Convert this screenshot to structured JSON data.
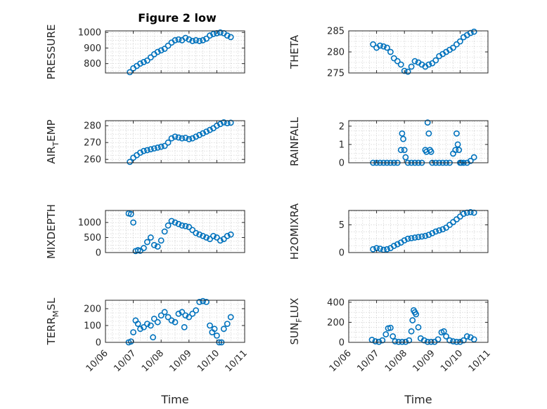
{
  "figure": {
    "title": "Figure 2 low",
    "marker_color": "#0072BD"
  },
  "chart_data": [
    {
      "type": "scatter",
      "ylabel": "PRESSURE",
      "xlabel": "",
      "xlim": [
        "10/06",
        "10/11"
      ],
      "ylim": [
        740,
        1010
      ],
      "yticks": [
        800,
        900,
        1000
      ],
      "show_xticklabels": false,
      "x": [
        "10/06 21:00",
        "10/07 00:00",
        "10/07 03:00",
        "10/07 06:00",
        "10/07 09:00",
        "10/07 12:00",
        "10/07 15:00",
        "10/07 18:00",
        "10/07 21:00",
        "10/08 00:00",
        "10/08 03:00",
        "10/08 06:00",
        "10/08 09:00",
        "10/08 12:00",
        "10/08 15:00",
        "10/08 18:00",
        "10/08 21:00",
        "10/09 00:00",
        "10/09 03:00",
        "10/09 06:00",
        "10/09 09:00",
        "10/09 12:00",
        "10/09 15:00",
        "10/09 18:00",
        "10/09 21:00",
        "10/10 00:00",
        "10/10 03:00",
        "10/10 06:00",
        "10/10 09:00",
        "10/10 12:00"
      ],
      "y": [
        745,
        770,
        785,
        800,
        810,
        820,
        840,
        860,
        875,
        885,
        895,
        915,
        935,
        950,
        955,
        950,
        965,
        955,
        945,
        950,
        945,
        950,
        960,
        980,
        990,
        995,
        1000,
        995,
        980,
        970
      ]
    },
    {
      "type": "scatter",
      "ylabel": "THETA",
      "xlabel": "",
      "xlim": [
        "10/06",
        "10/11"
      ],
      "ylim": [
        275,
        285
      ],
      "yticks": [
        275,
        280,
        285
      ],
      "show_xticklabels": false,
      "x": [
        "10/06 21:00",
        "10/07 00:00",
        "10/07 03:00",
        "10/07 06:00",
        "10/07 09:00",
        "10/07 12:00",
        "10/07 15:00",
        "10/07 18:00",
        "10/07 21:00",
        "10/08 00:00",
        "10/08 03:00",
        "10/08 06:00",
        "10/08 09:00",
        "10/08 12:00",
        "10/08 15:00",
        "10/08 18:00",
        "10/08 21:00",
        "10/09 00:00",
        "10/09 03:00",
        "10/09 06:00",
        "10/09 09:00",
        "10/09 12:00",
        "10/09 15:00",
        "10/09 18:00",
        "10/09 21:00",
        "10/10 00:00",
        "10/10 03:00",
        "10/10 06:00",
        "10/10 09:00",
        "10/10 12:00"
      ],
      "y": [
        281.8,
        281.0,
        281.5,
        281.3,
        281.0,
        280.0,
        278.5,
        277.8,
        277.0,
        275.5,
        275.3,
        276.5,
        277.8,
        277.5,
        277.0,
        276.5,
        277.0,
        277.3,
        278.0,
        279.0,
        279.5,
        280.0,
        280.5,
        281.0,
        281.8,
        282.5,
        283.5,
        284.0,
        284.5,
        284.8
      ]
    },
    {
      "type": "scatter",
      "ylabel": "AIR_TEMP",
      "xlabel": "",
      "xlim": [
        "10/06",
        "10/11"
      ],
      "ylim": [
        258,
        283
      ],
      "yticks": [
        260,
        270,
        280
      ],
      "show_xticklabels": false,
      "x": [
        "10/06 21:00",
        "10/07 00:00",
        "10/07 03:00",
        "10/07 06:00",
        "10/07 09:00",
        "10/07 12:00",
        "10/07 15:00",
        "10/07 18:00",
        "10/07 21:00",
        "10/08 00:00",
        "10/08 03:00",
        "10/08 06:00",
        "10/08 09:00",
        "10/08 12:00",
        "10/08 15:00",
        "10/08 18:00",
        "10/08 21:00",
        "10/09 00:00",
        "10/09 03:00",
        "10/09 06:00",
        "10/09 09:00",
        "10/09 12:00",
        "10/09 15:00",
        "10/09 18:00",
        "10/09 21:00",
        "10/10 00:00",
        "10/10 03:00",
        "10/10 06:00",
        "10/10 09:00",
        "10/10 12:00"
      ],
      "y": [
        258.5,
        261.0,
        262.5,
        264.0,
        265.0,
        265.5,
        266.0,
        266.5,
        267.0,
        267.5,
        268.0,
        270.0,
        272.5,
        273.5,
        273.0,
        272.5,
        272.8,
        272.0,
        272.5,
        273.5,
        274.5,
        275.5,
        276.5,
        277.5,
        278.5,
        280.0,
        281.0,
        282.0,
        281.5,
        281.8
      ]
    },
    {
      "type": "scatter",
      "ylabel": "RAINFALL",
      "xlabel": "",
      "xlim": [
        "10/06",
        "10/11"
      ],
      "ylim": [
        0,
        2.3
      ],
      "yticks": [
        0,
        1,
        2
      ],
      "show_xticklabels": false,
      "x": [
        "10/06 21:00",
        "10/07 00:00",
        "10/07 03:00",
        "10/07 06:00",
        "10/07 09:00",
        "10/07 12:00",
        "10/07 15:00",
        "10/07 18:00",
        "10/07 21:00",
        "10/07 22:00",
        "10/07 23:00",
        "10/08 00:00",
        "10/08 01:00",
        "10/08 03:00",
        "10/08 06:00",
        "10/08 09:00",
        "10/08 12:00",
        "10/08 15:00",
        "10/08 18:00",
        "10/08 19:00",
        "10/08 20:00",
        "10/08 21:00",
        "10/08 22:00",
        "10/08 23:00",
        "10/09 00:00",
        "10/09 03:00",
        "10/09 06:00",
        "10/09 09:00",
        "10/09 12:00",
        "10/09 15:00",
        "10/09 18:00",
        "10/09 20:00",
        "10/09 21:00",
        "10/09 22:00",
        "10/09 23:00",
        "10/10 00:00",
        "10/10 01:00",
        "10/10 03:00",
        "10/10 06:00",
        "10/10 09:00",
        "10/10 12:00"
      ],
      "y": [
        0,
        0,
        0,
        0,
        0,
        0,
        0,
        0,
        0.7,
        1.6,
        1.3,
        0.7,
        0.3,
        0,
        0,
        0,
        0,
        0,
        0.7,
        0.6,
        2.2,
        1.6,
        0.7,
        0.6,
        0,
        0,
        0,
        0,
        0,
        0,
        0.5,
        0.7,
        1.6,
        1.0,
        0.7,
        0,
        0,
        0,
        0,
        0.1,
        0.3
      ]
    },
    {
      "type": "scatter",
      "ylabel": "MIXDEPTH",
      "xlabel": "",
      "xlim": [
        "10/06",
        "10/11"
      ],
      "ylim": [
        0,
        1400
      ],
      "yticks": [
        0,
        500,
        1000
      ],
      "show_xticklabels": false,
      "x": [
        "10/06 20:00",
        "10/06 22:00",
        "10/07 00:00",
        "10/07 02:00",
        "10/07 04:00",
        "10/07 06:00",
        "10/07 09:00",
        "10/07 12:00",
        "10/07 15:00",
        "10/07 18:00",
        "10/07 21:00",
        "10/08 00:00",
        "10/08 03:00",
        "10/08 06:00",
        "10/08 09:00",
        "10/08 12:00",
        "10/08 15:00",
        "10/08 18:00",
        "10/08 21:00",
        "10/09 00:00",
        "10/09 03:00",
        "10/09 06:00",
        "10/09 09:00",
        "10/09 12:00",
        "10/09 15:00",
        "10/09 18:00",
        "10/09 21:00",
        "10/10 00:00",
        "10/10 03:00",
        "10/10 06:00",
        "10/10 09:00",
        "10/10 12:00"
      ],
      "y": [
        1300,
        1280,
        1000,
        50,
        80,
        60,
        150,
        350,
        500,
        250,
        200,
        400,
        700,
        900,
        1050,
        1000,
        950,
        900,
        880,
        850,
        750,
        650,
        600,
        550,
        500,
        450,
        550,
        500,
        400,
        450,
        550,
        600
      ]
    },
    {
      "type": "scatter",
      "ylabel": "H2OMIXRA",
      "xlabel": "",
      "xlim": [
        "10/06",
        "10/11"
      ],
      "ylim": [
        0,
        7.6
      ],
      "yticks": [
        0,
        5
      ],
      "show_xticklabels": false,
      "x": [
        "10/06 21:00",
        "10/07 00:00",
        "10/07 03:00",
        "10/07 06:00",
        "10/07 09:00",
        "10/07 12:00",
        "10/07 15:00",
        "10/07 18:00",
        "10/07 21:00",
        "10/08 00:00",
        "10/08 03:00",
        "10/08 06:00",
        "10/08 09:00",
        "10/08 12:00",
        "10/08 15:00",
        "10/08 18:00",
        "10/08 21:00",
        "10/09 00:00",
        "10/09 03:00",
        "10/09 06:00",
        "10/09 09:00",
        "10/09 12:00",
        "10/09 15:00",
        "10/09 18:00",
        "10/09 21:00",
        "10/10 00:00",
        "10/10 03:00",
        "10/10 06:00",
        "10/10 09:00",
        "10/10 12:00"
      ],
      "y": [
        0.6,
        0.8,
        0.7,
        0.5,
        0.6,
        0.8,
        1.2,
        1.5,
        1.8,
        2.2,
        2.5,
        2.6,
        2.7,
        2.8,
        2.9,
        3.0,
        3.2,
        3.5,
        3.8,
        4.0,
        4.2,
        4.5,
        5.0,
        5.5,
        6.0,
        6.5,
        7.0,
        7.2,
        7.3,
        7.2
      ]
    },
    {
      "type": "scatter",
      "ylabel": "TERR_MSL",
      "xlabel": "Time",
      "xlim": [
        "10/06",
        "10/11"
      ],
      "ylim": [
        0,
        250
      ],
      "yticks": [
        0,
        100,
        200
      ],
      "show_xticklabels": true,
      "xticks": [
        "10/06",
        "10/07",
        "10/08",
        "10/09",
        "10/10",
        "10/11"
      ],
      "x": [
        "10/06 20:00",
        "10/06 22:00",
        "10/07 00:00",
        "10/07 02:00",
        "10/07 04:00",
        "10/07 06:00",
        "10/07 09:00",
        "10/07 12:00",
        "10/07 15:00",
        "10/07 17:00",
        "10/07 18:00",
        "10/07 21:00",
        "10/08 00:00",
        "10/08 03:00",
        "10/08 06:00",
        "10/08 09:00",
        "10/08 12:00",
        "10/08 15:00",
        "10/08 18:00",
        "10/08 20:00",
        "10/08 21:00",
        "10/09 00:00",
        "10/09 03:00",
        "10/09 06:00",
        "10/09 09:00",
        "10/09 12:00",
        "10/09 15:00",
        "10/09 18:00",
        "10/09 20:00",
        "10/09 22:00",
        "10/10 00:00",
        "10/10 02:00",
        "10/10 04:00",
        "10/10 06:00",
        "10/10 09:00",
        "10/10 12:00"
      ],
      "y": [
        0,
        5,
        60,
        130,
        110,
        80,
        90,
        110,
        100,
        30,
        140,
        120,
        160,
        180,
        150,
        130,
        120,
        170,
        180,
        90,
        160,
        150,
        170,
        190,
        240,
        245,
        240,
        100,
        60,
        80,
        40,
        0,
        0,
        80,
        110,
        150
      ]
    },
    {
      "type": "scatter",
      "ylabel": "SUN_FLUX",
      "xlabel": "Time",
      "xlim": [
        "10/06",
        "10/11"
      ],
      "ylim": [
        0,
        420
      ],
      "yticks": [
        0,
        200,
        400
      ],
      "show_xticklabels": true,
      "xticks": [
        "10/06",
        "10/07",
        "10/08",
        "10/09",
        "10/10",
        "10/11"
      ],
      "x": [
        "10/06 20:00",
        "10/06 23:00",
        "10/07 02:00",
        "10/07 05:00",
        "10/07 08:00",
        "10/07 10:00",
        "10/07 12:00",
        "10/07 14:00",
        "10/07 16:00",
        "10/07 19:00",
        "10/07 22:00",
        "10/08 01:00",
        "10/08 04:00",
        "10/08 06:00",
        "10/08 07:00",
        "10/08 08:00",
        "10/08 09:00",
        "10/08 10:00",
        "10/08 12:00",
        "10/08 14:00",
        "10/08 17:00",
        "10/08 20:00",
        "10/08 23:00",
        "10/09 02:00",
        "10/09 05:00",
        "10/09 08:00",
        "10/09 10:00",
        "10/09 12:00",
        "10/09 15:00",
        "10/09 18:00",
        "10/09 21:00",
        "10/10 00:00",
        "10/10 03:00",
        "10/10 06:00",
        "10/10 09:00",
        "10/10 12:00"
      ],
      "y": [
        25,
        10,
        5,
        20,
        80,
        140,
        145,
        60,
        10,
        5,
        5,
        5,
        20,
        110,
        220,
        320,
        300,
        280,
        150,
        40,
        20,
        5,
        5,
        5,
        30,
        100,
        110,
        60,
        20,
        10,
        5,
        5,
        20,
        60,
        50,
        30
      ]
    }
  ]
}
